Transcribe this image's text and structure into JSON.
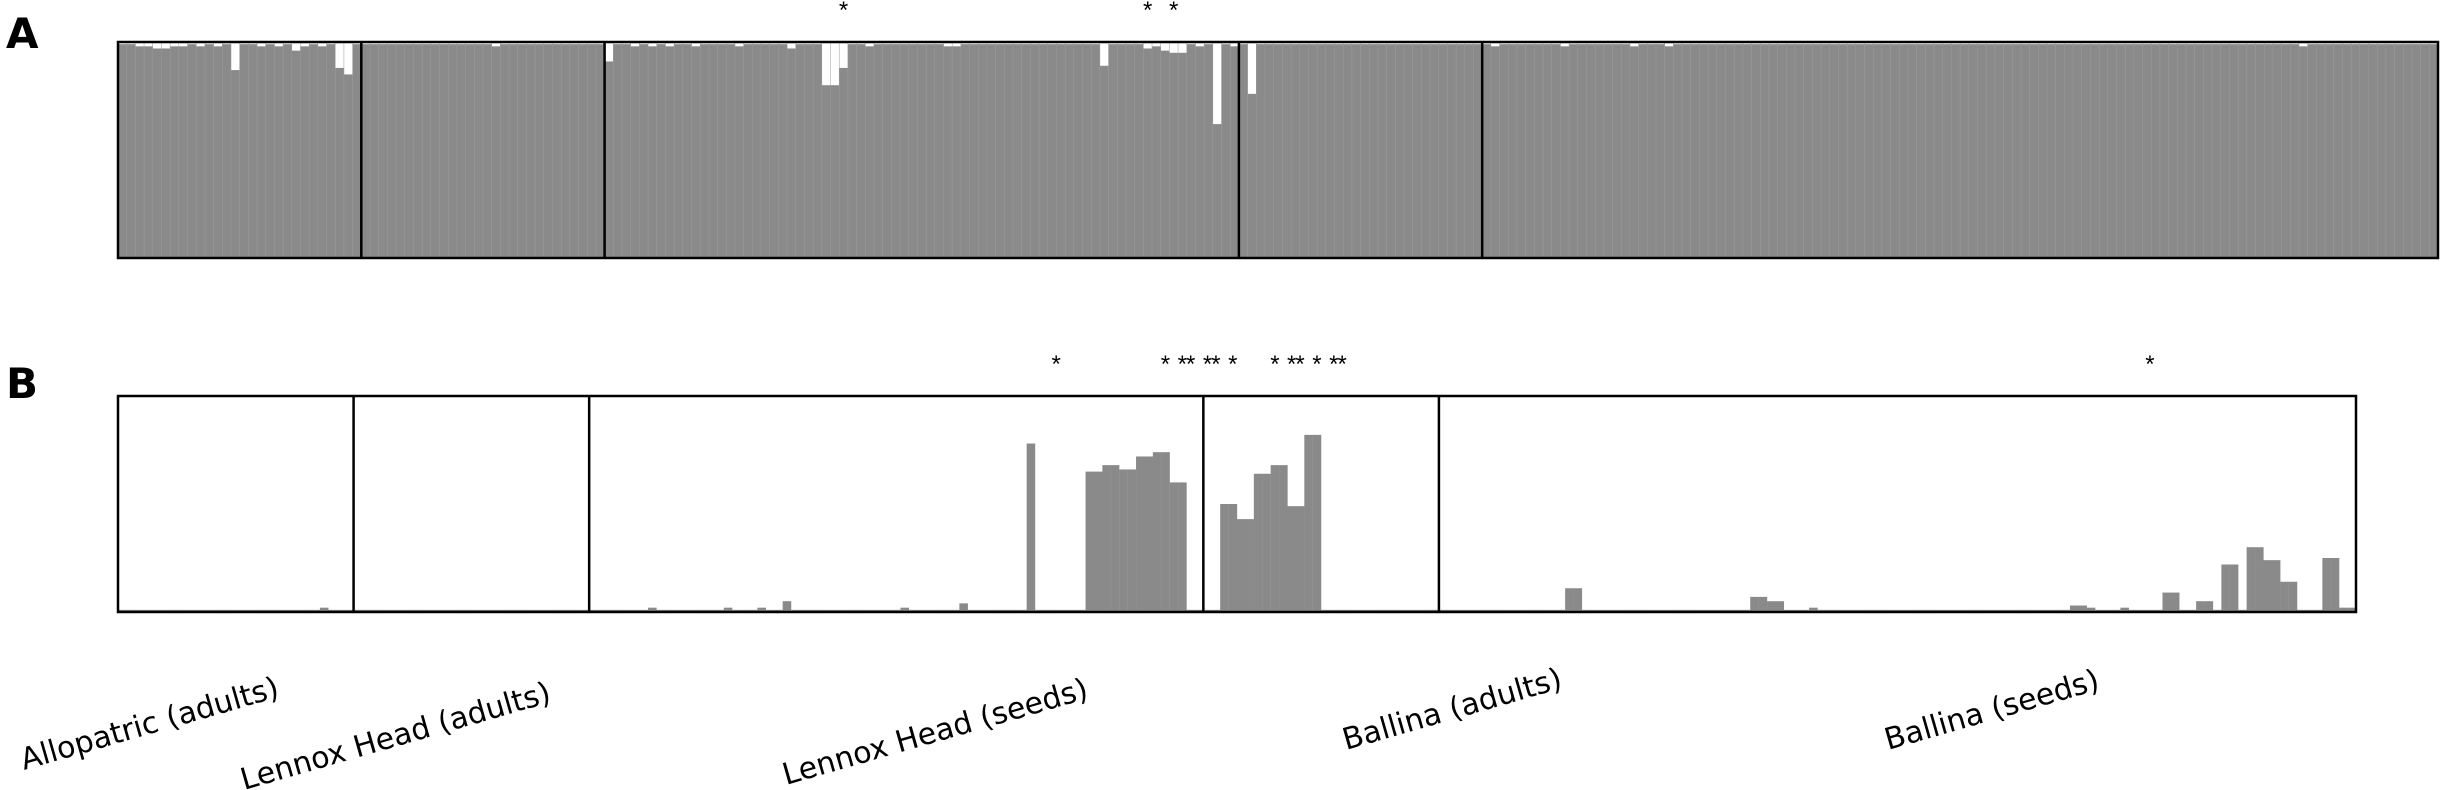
{
  "chart_data": {
    "type": "bar",
    "description_groups": [
      "Allopatric (adults)",
      "Lennox Head (adults)",
      "Lennox Head (seeds)",
      "Ballina (adults)",
      "Ballina (seeds)"
    ],
    "colors": {
      "bar": "#8a8a8a",
      "background": "#ffffff",
      "frame": "#000000"
    },
    "panels": [
      {
        "label": "A",
        "mode": "stacked-proportion",
        "ylim": [
          0,
          1
        ],
        "star_label": "*",
        "group_sizes": [
          28,
          28,
          73,
          28,
          86
        ],
        "values": [
          0.99,
          0.99,
          0.98,
          0.98,
          0.97,
          0.97,
          0.98,
          0.98,
          0.99,
          0.98,
          0.99,
          0.98,
          0.99,
          0.87,
          0.99,
          0.99,
          0.98,
          0.99,
          0.98,
          0.99,
          0.96,
          0.98,
          0.99,
          0.98,
          0.99,
          0.88,
          0.85,
          0.99,
          0.99,
          0.99,
          0.99,
          0.99,
          0.99,
          0.99,
          0.99,
          0.99,
          0.99,
          0.99,
          0.99,
          0.99,
          0.99,
          0.99,
          0.99,
          0.98,
          0.99,
          0.99,
          0.99,
          0.99,
          0.99,
          0.99,
          0.99,
          0.99,
          0.99,
          0.99,
          0.99,
          0.99,
          0.91,
          0.99,
          0.99,
          0.98,
          0.99,
          0.98,
          0.99,
          0.98,
          0.99,
          0.99,
          0.98,
          0.99,
          0.99,
          0.99,
          0.99,
          0.98,
          0.99,
          0.99,
          0.99,
          0.99,
          0.99,
          0.97,
          0.99,
          0.99,
          0.99,
          0.8,
          0.8,
          0.88,
          0.99,
          0.99,
          0.98,
          0.99,
          0.99,
          0.99,
          0.99,
          0.99,
          0.99,
          0.99,
          0.99,
          0.98,
          0.98,
          0.99,
          0.99,
          0.99,
          0.99,
          0.99,
          0.99,
          0.99,
          0.99,
          0.99,
          0.99,
          0.99,
          0.99,
          0.99,
          0.99,
          0.99,
          0.99,
          0.89,
          0.99,
          0.99,
          0.99,
          0.99,
          0.97,
          0.98,
          0.96,
          0.95,
          0.95,
          0.99,
          0.98,
          0.99,
          0.62,
          0.99,
          0.98,
          0.99,
          0.76,
          0.99,
          0.99,
          0.99,
          0.99,
          0.99,
          0.99,
          0.99,
          0.99,
          0.99,
          0.99,
          0.99,
          0.99,
          0.99,
          0.99,
          0.99,
          0.99,
          0.99,
          0.99,
          0.99,
          0.99,
          0.99,
          0.99,
          0.99,
          0.99,
          0.99,
          0.99,
          0.99,
          0.98,
          0.99,
          0.99,
          0.99,
          0.99,
          0.99,
          0.99,
          0.99,
          0.98,
          0.99,
          0.99,
          0.99,
          0.99,
          0.99,
          0.99,
          0.99,
          0.98,
          0.99,
          0.99,
          0.99,
          0.98,
          0.99,
          0.99,
          0.99,
          0.99,
          0.99,
          0.99,
          0.99,
          0.99,
          0.99,
          0.99,
          0.99,
          0.99,
          0.99,
          0.99,
          0.99,
          0.99,
          0.99,
          0.99,
          0.99,
          0.99,
          0.99,
          0.99,
          0.99,
          0.99,
          0.99,
          0.99,
          0.99,
          0.99,
          0.99,
          0.99,
          0.99,
          0.99,
          0.99,
          0.99,
          0.99,
          0.99,
          0.99,
          0.99,
          0.99,
          0.99,
          0.99,
          0.99,
          0.99,
          0.99,
          0.99,
          0.99,
          0.99,
          0.99,
          0.99,
          0.99,
          0.99,
          0.99,
          0.99,
          0.99,
          0.99,
          0.99,
          0.99,
          0.99,
          0.99,
          0.99,
          0.99,
          0.99,
          0.99,
          0.99,
          0.99,
          0.99,
          0.99,
          0.99,
          0.99,
          0.99,
          0.99,
          0.99,
          0.98,
          0.99,
          0.99,
          0.99,
          0.99,
          0.99,
          0.99,
          0.99,
          0.99,
          0.99,
          0.99,
          0.99,
          0.99,
          0.99,
          0.99,
          0.99
        ],
        "stars": [
          83,
          118,
          121
        ]
      },
      {
        "label": "B",
        "mode": "bars",
        "ylim": [
          0,
          1
        ],
        "star_label": "*",
        "group_sizes": [
          28,
          28,
          73,
          28,
          86
        ],
        "values": [
          0.01,
          0.01,
          0.01,
          0.01,
          0.01,
          0.01,
          0.01,
          0.01,
          0.01,
          0.01,
          0.01,
          0.01,
          0.01,
          0.01,
          0.01,
          0.01,
          0.01,
          0.01,
          0.01,
          0.01,
          0.01,
          0.01,
          0.01,
          0.01,
          0.02,
          0.01,
          0.01,
          0.01,
          0.01,
          0.01,
          0.01,
          0.01,
          0.01,
          0.01,
          0.01,
          0.01,
          0.01,
          0.01,
          0.01,
          0.01,
          0.01,
          0.01,
          0.01,
          0.01,
          0.01,
          0.01,
          0.01,
          0.01,
          0.01,
          0.01,
          0.01,
          0.01,
          0.01,
          0.01,
          0.01,
          0.01,
          0.01,
          0.01,
          0.01,
          0.01,
          0.01,
          0.01,
          0.01,
          0.02,
          0.01,
          0.01,
          0.01,
          0.01,
          0.01,
          0.01,
          0.01,
          0.01,
          0.02,
          0.01,
          0.01,
          0.01,
          0.02,
          0.01,
          0.01,
          0.05,
          0.01,
          0.01,
          0.01,
          0.01,
          0.01,
          0.01,
          0.01,
          0.01,
          0.01,
          0.01,
          0.01,
          0.01,
          0.01,
          0.02,
          0.01,
          0.01,
          0.01,
          0.01,
          0.01,
          0.01,
          0.04,
          0.01,
          0.01,
          0.01,
          0.01,
          0.01,
          0.01,
          0.01,
          0.78,
          0.01,
          0.01,
          0.01,
          0.01,
          0.01,
          0.01,
          0.65,
          0.65,
          0.68,
          0.68,
          0.66,
          0.66,
          0.72,
          0.72,
          0.74,
          0.74,
          0.6,
          0.6,
          0.01,
          0.01,
          0.01,
          0.01,
          0.5,
          0.5,
          0.43,
          0.43,
          0.64,
          0.64,
          0.68,
          0.68,
          0.49,
          0.49,
          0.82,
          0.82,
          0.01,
          0.01,
          0.01,
          0.01,
          0.01,
          0.01,
          0.01,
          0.01,
          0.01,
          0.01,
          0.01,
          0.01,
          0.01,
          0.01,
          0.01,
          0.01,
          0.01,
          0.01,
          0.01,
          0.01,
          0.01,
          0.01,
          0.01,
          0.01,
          0.01,
          0.01,
          0.01,
          0.01,
          0.01,
          0.11,
          0.11,
          0.01,
          0.01,
          0.01,
          0.01,
          0.01,
          0.01,
          0.01,
          0.01,
          0.01,
          0.01,
          0.01,
          0.01,
          0.01,
          0.01,
          0.01,
          0.01,
          0.01,
          0.01,
          0.01,
          0.01,
          0.07,
          0.07,
          0.05,
          0.05,
          0.01,
          0.01,
          0.01,
          0.02,
          0.01,
          0.01,
          0.01,
          0.01,
          0.01,
          0.01,
          0.01,
          0.01,
          0.01,
          0.01,
          0.01,
          0.01,
          0.01,
          0.01,
          0.01,
          0.01,
          0.01,
          0.01,
          0.01,
          0.01,
          0.01,
          0.01,
          0.01,
          0.01,
          0.01,
          0.01,
          0.01,
          0.01,
          0.01,
          0.01,
          0.03,
          0.03,
          0.02,
          0.01,
          0.01,
          0.01,
          0.02,
          0.01,
          0.01,
          0.01,
          0.01,
          0.09,
          0.09,
          0.01,
          0.01,
          0.05,
          0.05,
          0.01,
          0.22,
          0.22,
          0.01,
          0.3,
          0.3,
          0.24,
          0.24,
          0.14,
          0.14,
          0.01,
          0.01,
          0.01,
          0.25,
          0.25,
          0.02,
          0.02
        ],
        "stars": [
          111,
          124,
          126,
          127,
          129,
          130,
          132,
          137,
          139,
          140,
          142,
          144,
          145,
          241
        ]
      }
    ]
  }
}
